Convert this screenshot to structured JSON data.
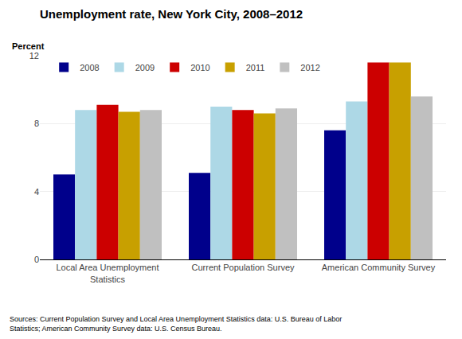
{
  "chart_data": {
    "type": "bar",
    "title": "Unemployment rate, New York City, 2008–2012",
    "ylabel": "Percent",
    "source": "Sources: Current Population Survey and Local Area Unemployment Statistics data: U.S. Bureau of Labor\nStatistics; American Community Survey data: U.S. Census Bureau.",
    "categories": [
      "Local Area Unemployment\nStatistics",
      "Current Population Survey",
      "American Community Survey"
    ],
    "series": [
      {
        "name": "2008",
        "color": "#00008B",
        "values": [
          5.0,
          5.1,
          7.6
        ]
      },
      {
        "name": "2009",
        "color": "#ADD8E6",
        "values": [
          8.8,
          9.0,
          9.3
        ]
      },
      {
        "name": "2010",
        "color": "#CC0000",
        "values": [
          9.1,
          8.8,
          11.6
        ]
      },
      {
        "name": "2011",
        "color": "#C8A000",
        "values": [
          8.7,
          8.6,
          11.6
        ]
      },
      {
        "name": "2012",
        "color": "#C0C0C0",
        "values": [
          8.8,
          8.9,
          9.6
        ]
      }
    ],
    "ylim": [
      0,
      12
    ],
    "yticks": [
      0,
      4,
      8,
      12
    ],
    "grid": true,
    "legend": "upper left"
  }
}
